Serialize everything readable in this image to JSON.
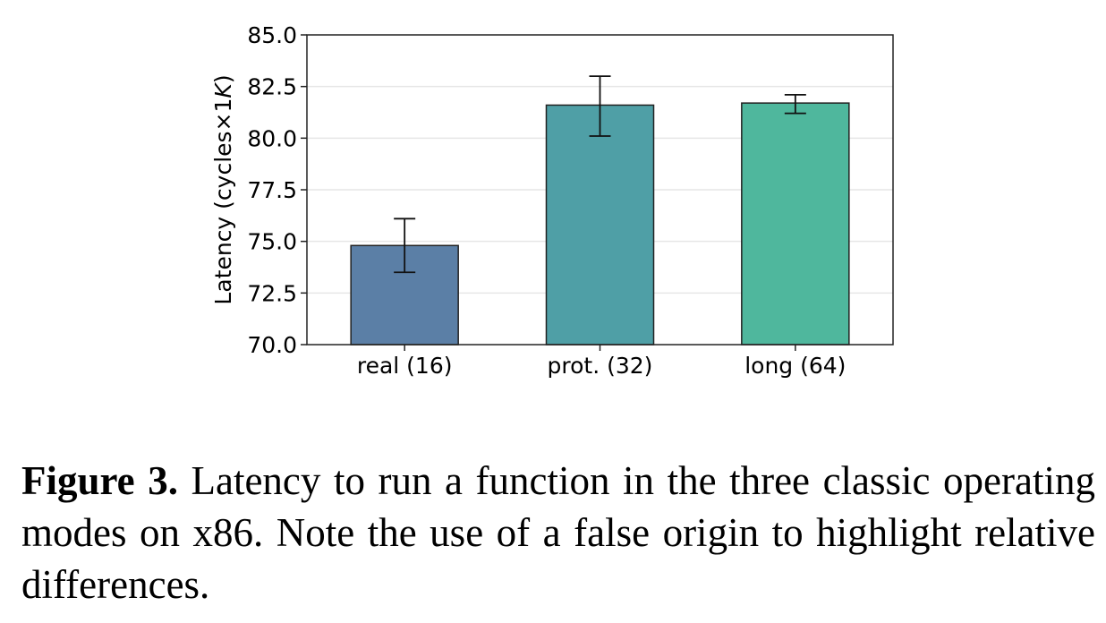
{
  "chart_data": {
    "type": "bar",
    "categories": [
      "real (16)",
      "prot. (32)",
      "long (64)"
    ],
    "values": [
      74.8,
      81.6,
      81.7
    ],
    "error_low": [
      73.5,
      80.1,
      81.2
    ],
    "error_high": [
      76.1,
      83.0,
      82.1
    ],
    "colors": [
      "#5b7fa6",
      "#4f9fa6",
      "#4fb79d"
    ],
    "ylabel": "Latency (cycles×1",
    "ylabel_italic": "K",
    "ylabel_close": ")",
    "ylim": [
      70.0,
      85.0
    ],
    "yticks": [
      "70.0",
      "72.5",
      "75.0",
      "77.5",
      "80.0",
      "82.5",
      "85.0"
    ],
    "grid": true
  },
  "caption": {
    "label": "Figure 3.",
    "text": " Latency to run a function in the three classic operating modes on x86. Note the use of a false origin to highlight relative differences."
  }
}
